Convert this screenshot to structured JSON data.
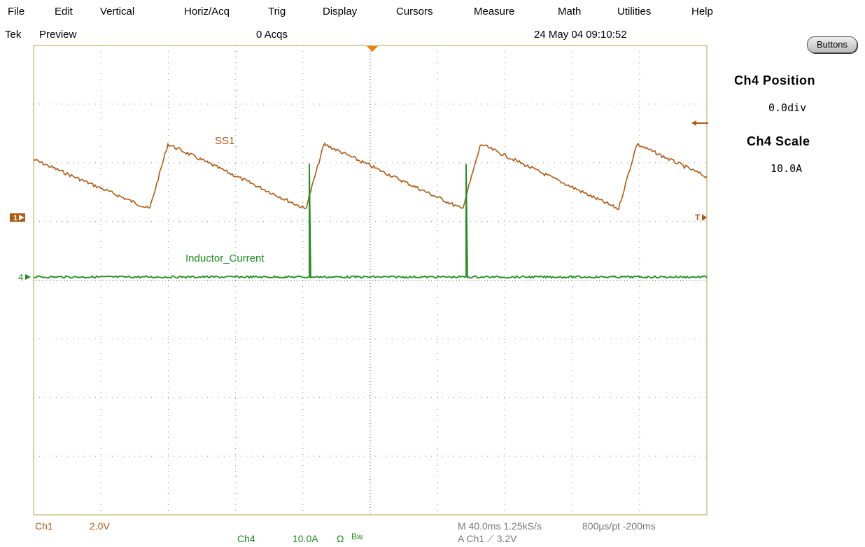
{
  "menu": [
    "File",
    "Edit",
    "Vertical",
    "Horiz/Acq",
    "Trig",
    "Display",
    "Cursors",
    "Measure",
    "Math",
    "Utilities",
    "Help"
  ],
  "status": {
    "brand": "Tek",
    "mode": "Preview",
    "acqs": "0 Acqs",
    "datetime": "24 May 04 09:10:52"
  },
  "side_panel": {
    "buttons_label": "Buttons",
    "position_title": "Ch4 Position",
    "position_value": "0.0div",
    "scale_title": "Ch4 Scale",
    "scale_value": "10.0A"
  },
  "waveforms": {
    "ss1_label": "SS1",
    "inductor_label": "Inductor_Current",
    "ch1_marker": "1",
    "ch4_marker": "4",
    "trigger_marker": "T"
  },
  "readouts": {
    "ch1_name": "Ch1",
    "ch1_scale": "2.0V",
    "ch4_name": "Ch4",
    "ch4_scale": "10.0A",
    "ch4_ohm": "Ω",
    "ch4_bw": "Bw",
    "timebase": "M 40.0ms 1.25kS/s",
    "resolution": "800µs/pt -200ms",
    "trigger": "A  Ch1  ⟋  3.2V"
  },
  "colors": {
    "ch1": "#b05a14",
    "ch4": "#1e8c1e",
    "grid_border": "#b9b46e",
    "grid_dots": "#8a8a8a",
    "trigger": "#f08000"
  }
}
